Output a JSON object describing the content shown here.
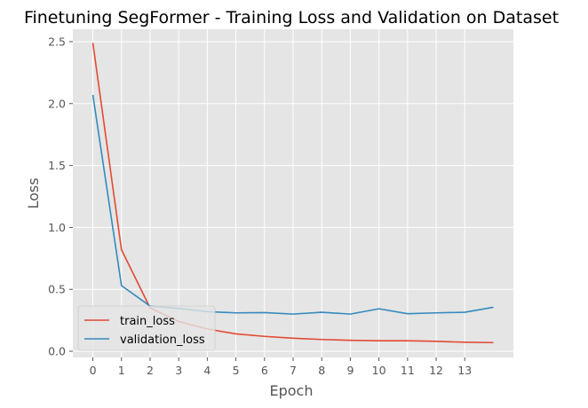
{
  "chart_data": {
    "type": "line",
    "title": "Finetuning SegFormer - Training Loss and Validation on Dataset",
    "xlabel": "Epoch",
    "ylabel": "Loss",
    "x": [
      0,
      1,
      2,
      3,
      4,
      5,
      6,
      7,
      8,
      9,
      10,
      11,
      12,
      13,
      14
    ],
    "xticks": [
      0,
      1,
      2,
      3,
      4,
      5,
      6,
      7,
      8,
      9,
      10,
      11,
      12,
      13
    ],
    "yticks": [
      "0.0",
      "0.5",
      "1.0",
      "1.5",
      "2.0",
      "2.5"
    ],
    "xlim": [
      -0.7,
      14.7
    ],
    "ylim": [
      -0.05,
      2.6
    ],
    "grid": true,
    "legend_position": "lower-left",
    "series": [
      {
        "name": "train_loss",
        "color": "#E24A33",
        "values": [
          2.49,
          0.82,
          0.35,
          0.24,
          0.18,
          0.14,
          0.12,
          0.105,
          0.095,
          0.088,
          0.085,
          0.085,
          0.08,
          0.073,
          0.07
        ]
      },
      {
        "name": "validation_loss",
        "color": "#348ABD",
        "values": [
          2.07,
          0.53,
          0.365,
          0.345,
          0.32,
          0.31,
          0.312,
          0.3,
          0.315,
          0.3,
          0.343,
          0.303,
          0.31,
          0.315,
          0.355
        ]
      }
    ]
  }
}
